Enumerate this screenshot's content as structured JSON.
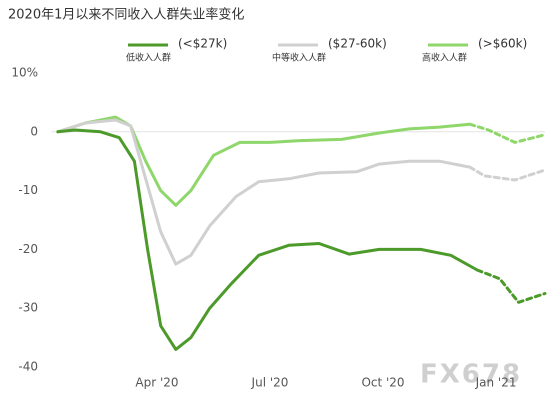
{
  "chart_data": {
    "type": "line",
    "title": "2020年1月以来不同收入人群失业率变化",
    "watermark": "FX678",
    "xlim": [
      0.2,
      13.3
    ],
    "xticks": [
      {
        "value": 3,
        "label": "Apr '20"
      },
      {
        "value": 6,
        "label": "Jul '20"
      },
      {
        "value": 9,
        "label": "Oct '20"
      },
      {
        "value": 12,
        "label": "Jan '21"
      }
    ],
    "ylim": [
      -41.5,
      10
    ],
    "yticks": [
      {
        "value": 10,
        "label": "10%"
      },
      0,
      -10,
      -20,
      -30,
      -40
    ],
    "zero_line": true,
    "projected_from": 11.5,
    "series": [
      {
        "name": "低收入人群",
        "range_label": "(<$27k)",
        "color": "#4c9a2a",
        "x": [
          0.37,
          0.82,
          1.5,
          2.0,
          2.4,
          2.75,
          3.1,
          3.5,
          3.9,
          4.4,
          4.95,
          5.7,
          6.5,
          7.3,
          8.1,
          8.9,
          10.0,
          10.8,
          11.5,
          12.1,
          12.6,
          13.3
        ],
        "values": [
          0,
          0.3,
          0,
          -1,
          -5,
          -20,
          -33,
          -37,
          -35,
          -30,
          -26,
          -21,
          -19.3,
          -19,
          -20.8,
          -20,
          -20,
          -21,
          -23.5,
          -25,
          -29,
          -27.5
        ]
      },
      {
        "name": "中等收入人群",
        "range_label": "($27-60k)",
        "color": "#d0d0d0",
        "x": [
          0.37,
          1.1,
          1.9,
          2.3,
          2.7,
          3.1,
          3.5,
          3.9,
          4.4,
          5.1,
          5.7,
          6.5,
          7.3,
          8.3,
          8.9,
          9.7,
          10.5,
          11.3,
          11.7,
          12.5,
          13.3
        ],
        "values": [
          0,
          1.5,
          2,
          1,
          -8,
          -17,
          -22.5,
          -21,
          -16,
          -11,
          -8.5,
          -8,
          -7,
          -6.8,
          -5.5,
          -5,
          -5,
          -6,
          -7.5,
          -8.2,
          -6.5
        ]
      },
      {
        "name": "高收入人群",
        "range_label": "(>$60k)",
        "color": "#8fd66b",
        "x": [
          0.37,
          1.1,
          1.9,
          2.3,
          2.7,
          3.1,
          3.5,
          3.9,
          4.5,
          5.2,
          6.0,
          6.8,
          7.9,
          8.9,
          9.7,
          10.5,
          11.3,
          11.8,
          12.5,
          13.3
        ],
        "values": [
          0,
          1.5,
          2.5,
          1,
          -5,
          -10,
          -12.5,
          -10,
          -4,
          -1.8,
          -1.8,
          -1.5,
          -1.3,
          -0.2,
          0.5,
          0.8,
          1.3,
          0.3,
          -1.8,
          -0.5
        ]
      }
    ]
  }
}
